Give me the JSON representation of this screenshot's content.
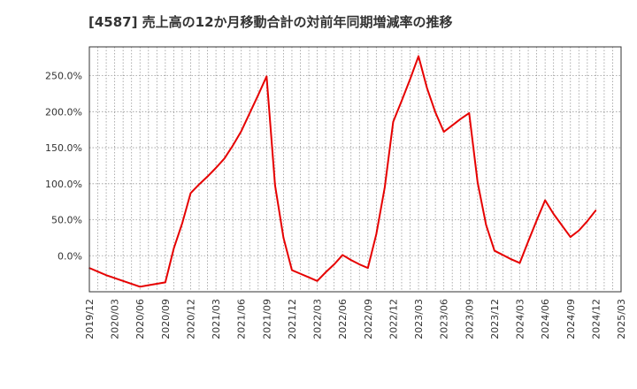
{
  "chart_data": {
    "type": "line",
    "title": "[4587]  売上高の12か月移動合計の対前年同期増減率の推移",
    "xlabel": "",
    "ylabel": "",
    "ylim": [
      -50,
      290
    ],
    "yticks": [
      0,
      50,
      100,
      150,
      200,
      250
    ],
    "ytick_labels": [
      "0.0%",
      "50.0%",
      "100.0%",
      "150.0%",
      "200.0%",
      "250.0%"
    ],
    "x_range": [
      "2019/12",
      "2025/03"
    ],
    "xtick_labels": [
      "2019/12",
      "2020/03",
      "2020/06",
      "2020/09",
      "2020/12",
      "2021/03",
      "2021/06",
      "2021/09",
      "2021/12",
      "2022/03",
      "2022/06",
      "2022/09",
      "2022/12",
      "2023/03",
      "2023/06",
      "2023/09",
      "2023/12",
      "2024/03",
      "2024/06",
      "2024/09",
      "2024/12",
      "2025/03"
    ],
    "grid": true,
    "series": [
      {
        "name": "対前年同期増減率",
        "color": "#e60000",
        "points": [
          [
            "2019/12",
            -17
          ],
          [
            "2020/01",
            -22
          ],
          [
            "2020/02",
            -27
          ],
          [
            "2020/03",
            -31
          ],
          [
            "2020/04",
            -35
          ],
          [
            "2020/05",
            -39
          ],
          [
            "2020/06",
            -43
          ],
          [
            "2020/07",
            -41
          ],
          [
            "2020/08",
            -39
          ],
          [
            "2020/09",
            -37
          ],
          [
            "2020/10",
            10
          ],
          [
            "2020/11",
            45
          ],
          [
            "2020/12",
            87
          ],
          [
            "2021/01",
            99
          ],
          [
            "2021/02",
            110
          ],
          [
            "2021/03",
            122
          ],
          [
            "2021/04",
            135
          ],
          [
            "2021/05",
            153
          ],
          [
            "2021/06",
            173
          ],
          [
            "2021/07",
            198
          ],
          [
            "2021/08",
            223
          ],
          [
            "2021/09",
            249
          ],
          [
            "2021/10",
            98
          ],
          [
            "2021/11",
            25
          ],
          [
            "2021/12",
            -20
          ],
          [
            "2022/01",
            -25
          ],
          [
            "2022/02",
            -30
          ],
          [
            "2022/03",
            -35
          ],
          [
            "2022/04",
            -23
          ],
          [
            "2022/05",
            -12
          ],
          [
            "2022/06",
            1
          ],
          [
            "2022/07",
            -6
          ],
          [
            "2022/08",
            -12
          ],
          [
            "2022/09",
            -17
          ],
          [
            "2022/10",
            30
          ],
          [
            "2022/11",
            95
          ],
          [
            "2022/12",
            186
          ],
          [
            "2023/01",
            215
          ],
          [
            "2023/02",
            245
          ],
          [
            "2023/03",
            277
          ],
          [
            "2023/04",
            233
          ],
          [
            "2023/05",
            199
          ],
          [
            "2023/06",
            172
          ],
          [
            "2023/07",
            181
          ],
          [
            "2023/08",
            190
          ],
          [
            "2023/09",
            198
          ],
          [
            "2023/10",
            102
          ],
          [
            "2023/11",
            43
          ],
          [
            "2023/12",
            7
          ],
          [
            "2024/01",
            1
          ],
          [
            "2024/02",
            -5
          ],
          [
            "2024/03",
            -10
          ],
          [
            "2024/04",
            20
          ],
          [
            "2024/05",
            49
          ],
          [
            "2024/06",
            77
          ],
          [
            "2024/07",
            58
          ],
          [
            "2024/08",
            42
          ],
          [
            "2024/09",
            26
          ],
          [
            "2024/10",
            35
          ],
          [
            "2024/11",
            48
          ],
          [
            "2024/12",
            63
          ]
        ]
      }
    ]
  }
}
